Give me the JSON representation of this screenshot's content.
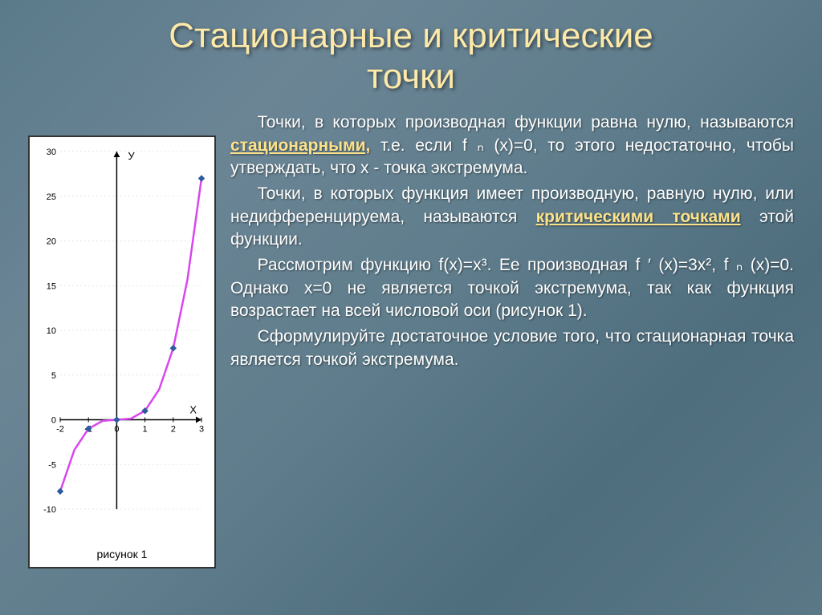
{
  "title_line1": "Стационарные и критические",
  "title_line2": "точки",
  "para1a": "Точки, в которых производная функции равна нулю, называются ",
  "kw1": "стационарными,",
  "para1b": " т.е. если f ₙ (x)=0, то этого недостаточно, чтобы утверждать, что x - точка экстремума.",
  "para2a": "Точки, в которых функция имеет производную, равную нулю, или недифференцируема, называются ",
  "kw2": "критическими точками",
  "para2b": " этой функции.",
  "para3": "Рассмотрим функцию f(x)=x³. Ее производная f ′ (x)=3x², f ₙ (x)=0. Однако x=0 не является точкой экстремума, так как функция возрастает на всей числовой оси (рисунок 1).",
  "para4": "Сформулируйте достаточное условие того, что стационарная точка является точкой экстремума.",
  "chart": {
    "caption": "рисунок 1",
    "y_label": "У",
    "x_label": "X",
    "x_ticks": [
      "-2",
      "-1",
      "0",
      "1",
      "2",
      "3"
    ],
    "y_ticks": [
      "-10",
      "-5",
      "0",
      "5",
      "10",
      "15",
      "20",
      "25",
      "30"
    ],
    "line_color": "#d946ef",
    "axis_color": "#000000",
    "grid_color": "#e5e5e5",
    "marker_color": "#2e5aa0",
    "background": "#ffffff",
    "xlim": [
      -2,
      3
    ],
    "ylim": [
      -10,
      30
    ],
    "points": [
      {
        "x": -2,
        "y": -8
      },
      {
        "x": -1.5,
        "y": -3.375
      },
      {
        "x": -1,
        "y": -1
      },
      {
        "x": -0.5,
        "y": -0.125
      },
      {
        "x": 0,
        "y": 0
      },
      {
        "x": 0.5,
        "y": 0.125
      },
      {
        "x": 1,
        "y": 1
      },
      {
        "x": 1.5,
        "y": 3.375
      },
      {
        "x": 2,
        "y": 8
      },
      {
        "x": 2.5,
        "y": 15.625
      },
      {
        "x": 3,
        "y": 27
      }
    ],
    "markers_x": [
      -2,
      -1,
      0,
      1,
      2,
      3
    ]
  },
  "style": {
    "title_color": "#fde9a8",
    "title_fontsize": 44,
    "body_fontsize": 21,
    "keyword_color": "#fce28a",
    "text_color": "#ffffff",
    "bg_gradient": [
      "#5a7a8a",
      "#6b8595",
      "#5f7d8c",
      "#4e6d7d",
      "#5a7886"
    ]
  }
}
